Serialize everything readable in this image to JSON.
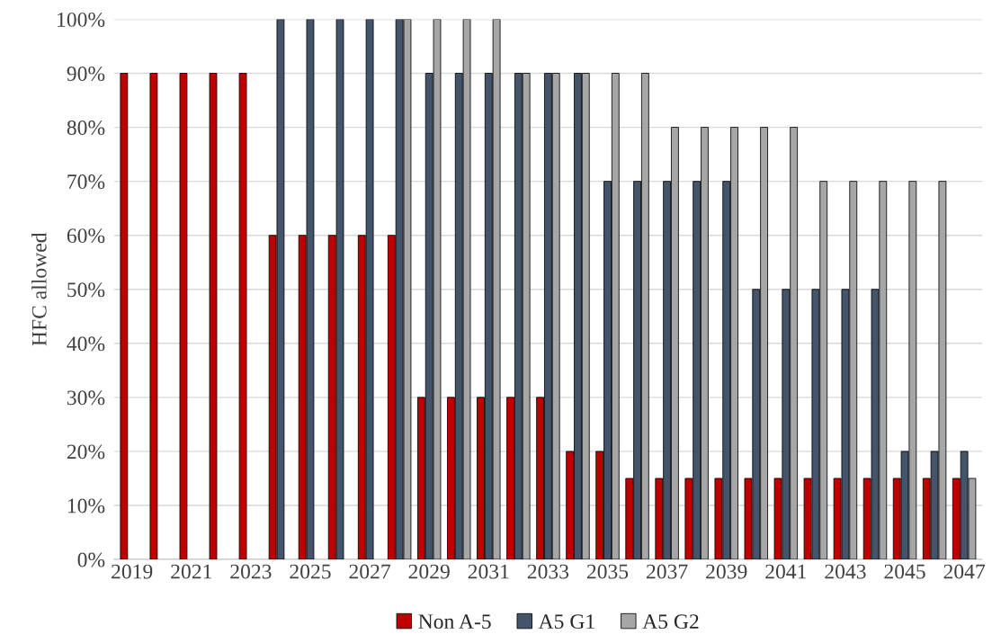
{
  "chart_data": {
    "type": "bar",
    "ylabel": "HFC allowed",
    "categories": [
      "2019",
      null,
      "2021",
      null,
      "2023",
      null,
      "2025",
      null,
      "2027",
      null,
      "2029",
      null,
      "2031",
      null,
      "2033",
      null,
      "2035",
      null,
      "2037",
      null,
      "2039",
      null,
      "2041",
      null,
      "2043",
      null,
      "2045",
      null,
      "2047"
    ],
    "series": [
      {
        "name": "Non A-5",
        "color": "#c00000",
        "values": [
          90,
          90,
          90,
          90,
          90,
          60,
          60,
          60,
          60,
          60,
          30,
          30,
          30,
          30,
          30,
          20,
          20,
          15,
          15,
          15,
          15,
          15,
          15,
          15,
          15,
          15,
          15,
          15,
          15
        ]
      },
      {
        "name": "A5 G1",
        "color": "#44546a",
        "values": [
          null,
          null,
          null,
          null,
          null,
          100,
          100,
          100,
          100,
          100,
          90,
          90,
          90,
          90,
          90,
          90,
          70,
          70,
          70,
          70,
          70,
          50,
          50,
          50,
          50,
          50,
          20,
          20,
          20
        ]
      },
      {
        "name": "A5 G2",
        "color": "#a6a6a6",
        "values": [
          null,
          null,
          null,
          null,
          null,
          null,
          null,
          null,
          null,
          100,
          100,
          100,
          100,
          90,
          90,
          90,
          90,
          90,
          80,
          80,
          80,
          80,
          80,
          70,
          70,
          70,
          70,
          70,
          15
        ]
      }
    ],
    "ylim": [
      0,
      100
    ],
    "yticks": [
      {
        "value": 0,
        "label": "0%"
      },
      {
        "value": 10,
        "label": "10%"
      },
      {
        "value": 20,
        "label": "20%"
      },
      {
        "value": 30,
        "label": "30%"
      },
      {
        "value": 40,
        "label": "40%"
      },
      {
        "value": 50,
        "label": "50%"
      },
      {
        "value": 60,
        "label": "60%"
      },
      {
        "value": 70,
        "label": "70%"
      },
      {
        "value": 80,
        "label": "80%"
      },
      {
        "value": 90,
        "label": "90%"
      },
      {
        "value": 100,
        "label": "100%"
      }
    ],
    "grid": "y",
    "legend": "bottom"
  }
}
